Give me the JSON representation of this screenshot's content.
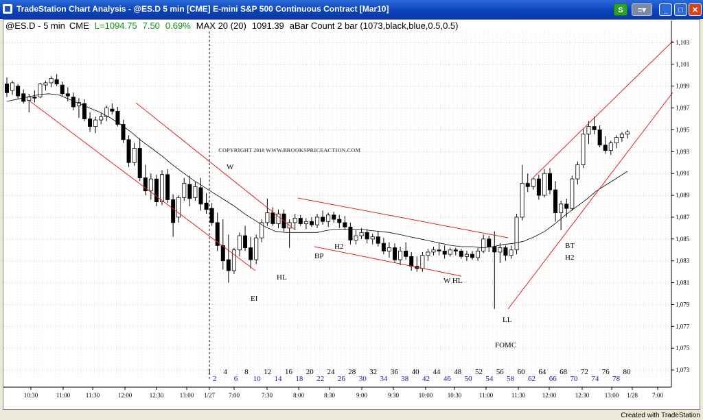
{
  "window": {
    "title": "TradeStation Chart Analysis - @ES.D 5 min [CME] E-mini S&P 500 Continuous Contract [Mar10]"
  },
  "status_bar": {
    "symbol": "@ES.D - 5 min",
    "exchange": "CME",
    "last": "L=1094.75",
    "change": "7.50",
    "change_pct": "0.69%",
    "max": "MAX 20 (20)",
    "max_value": "1091.39",
    "study": "aBar Count 2 bar (1073,black,blue,0.5,0.5)"
  },
  "footer": {
    "credit": "Created with TradeStation"
  },
  "chart_data": {
    "type": "candlestick",
    "copyright": "COPYRIGHT 2010  WWW.BROOKSPRICEACTION.COM",
    "y_axis": {
      "min": 1072,
      "max": 1104,
      "ticks": [
        "1,103",
        "1,101",
        "1,099",
        "1,097",
        "1,095",
        "1,093",
        "1,091",
        "1,089",
        "1,087",
        "1,085",
        "1,083",
        "1,081",
        "1,079",
        "1,077",
        "1,075",
        "1,073"
      ]
    },
    "x_labels": [
      "10:30",
      "11:00",
      "11:30",
      "12:00",
      "12:30",
      "13:00",
      "1/27",
      "7:00",
      "7:30",
      "8:00",
      "8:30",
      "9:00",
      "9:30",
      "10:00",
      "10:30",
      "11:00",
      "11:30",
      "12:00",
      "12:30",
      "13:00",
      "1/28",
      "7:00"
    ],
    "bar_count_odd": [
      "1",
      "4",
      "8",
      "12",
      "16",
      "20",
      "24",
      "28",
      "32",
      "36",
      "40",
      "44",
      "48",
      "52",
      "56",
      "60",
      "64",
      "68",
      "72",
      "76",
      "80"
    ],
    "bar_count_even": [
      "2",
      "6",
      "10",
      "14",
      "18",
      "22",
      "26",
      "30",
      "34",
      "38",
      "42",
      "46",
      "50",
      "54",
      "58",
      "62",
      "66",
      "70",
      "74",
      "78"
    ],
    "annotations": [
      "W",
      "EI",
      "HL",
      "BP",
      "H2",
      "W HL",
      "LL",
      "FOMC",
      "BT",
      "H2"
    ],
    "bars": [
      [
        1099.2,
        1099.8,
        1098.0,
        1098.4
      ],
      [
        1098.6,
        1099.5,
        1098.2,
        1099.3
      ],
      [
        1099.0,
        1099.2,
        1097.8,
        1098.1
      ],
      [
        1098.3,
        1098.7,
        1097.4,
        1097.6
      ],
      [
        1097.7,
        1098.3,
        1096.6,
        1098.0
      ],
      [
        1098.0,
        1098.6,
        1097.5,
        1097.9
      ],
      [
        1098.0,
        1099.3,
        1097.9,
        1099.2
      ],
      [
        1099.1,
        1099.5,
        1098.6,
        1099.3
      ],
      [
        1099.3,
        1099.9,
        1098.9,
        1099.7
      ],
      [
        1099.6,
        1100.1,
        1099.0,
        1099.2
      ],
      [
        1099.1,
        1099.4,
        1098.1,
        1098.3
      ],
      [
        1098.3,
        1098.9,
        1097.6,
        1098.1
      ],
      [
        1098.0,
        1098.4,
        1096.8,
        1097.1
      ],
      [
        1097.2,
        1097.9,
        1096.1,
        1097.5
      ],
      [
        1097.4,
        1097.8,
        1095.8,
        1096.0
      ],
      [
        1096.0,
        1096.6,
        1094.8,
        1095.3
      ],
      [
        1095.3,
        1096.2,
        1094.7,
        1095.9
      ],
      [
        1095.9,
        1096.5,
        1095.5,
        1096.2
      ],
      [
        1096.2,
        1097.2,
        1095.8,
        1097.0
      ],
      [
        1096.9,
        1097.4,
        1096.4,
        1096.7
      ],
      [
        1096.7,
        1097.1,
        1095.3,
        1095.5
      ],
      [
        1095.5,
        1095.9,
        1093.8,
        1094.1
      ],
      [
        1094.1,
        1094.5,
        1091.6,
        1092.0
      ],
      [
        1092.0,
        1093.8,
        1091.7,
        1093.3
      ],
      [
        1093.3,
        1094.2,
        1090.3,
        1090.6
      ],
      [
        1090.6,
        1091.8,
        1089.0,
        1089.4
      ],
      [
        1089.4,
        1091.0,
        1088.6,
        1090.5
      ],
      [
        1090.5,
        1090.9,
        1088.0,
        1088.4
      ],
      [
        1088.4,
        1091.3,
        1088.1,
        1090.9
      ],
      [
        1090.9,
        1091.4,
        1088.3,
        1088.6
      ],
      [
        1088.6,
        1089.1,
        1085.2,
        1086.5
      ],
      [
        1087.0,
        1089.0,
        1086.5,
        1088.8
      ],
      [
        1088.8,
        1090.6,
        1088.5,
        1090.1
      ],
      [
        1090.0,
        1090.8,
        1088.0,
        1088.7
      ],
      [
        1088.8,
        1090.2,
        1088.5,
        1089.8
      ],
      [
        1089.7,
        1090.6,
        1087.6,
        1088.2
      ],
      [
        1088.3,
        1089.2,
        1087.3,
        1087.7
      ],
      [
        1087.8,
        1088.3,
        1086.2,
        1086.5
      ],
      [
        1086.5,
        1087.4,
        1083.9,
        1084.4
      ],
      [
        1084.4,
        1086.8,
        1082.2,
        1083.0
      ],
      [
        1083.1,
        1085.4,
        1081.0,
        1082.1
      ],
      [
        1082.1,
        1084.2,
        1081.8,
        1084.0
      ],
      [
        1084.0,
        1085.6,
        1083.4,
        1085.3
      ],
      [
        1085.3,
        1086.2,
        1083.9,
        1084.2
      ],
      [
        1084.2,
        1085.2,
        1082.3,
        1083.1
      ],
      [
        1083.1,
        1085.4,
        1082.7,
        1085.1
      ],
      [
        1085.1,
        1086.8,
        1084.7,
        1086.5
      ],
      [
        1086.5,
        1088.7,
        1086.2,
        1087.4
      ],
      [
        1087.4,
        1087.9,
        1086.2,
        1086.4
      ],
      [
        1086.4,
        1087.7,
        1086.0,
        1087.3
      ],
      [
        1087.3,
        1087.7,
        1085.7,
        1086.0
      ],
      [
        1086.0,
        1086.8,
        1084.2,
        1086.5
      ],
      [
        1086.5,
        1087.3,
        1085.8,
        1086.9
      ],
      [
        1086.9,
        1087.2,
        1086.2,
        1086.4
      ],
      [
        1086.4,
        1086.9,
        1085.9,
        1086.6
      ],
      [
        1086.6,
        1087.0,
        1086.1,
        1086.3
      ],
      [
        1086.3,
        1087.3,
        1086.0,
        1087.0
      ],
      [
        1087.0,
        1087.6,
        1086.3,
        1086.6
      ],
      [
        1086.6,
        1087.4,
        1086.1,
        1087.2
      ],
      [
        1087.2,
        1087.5,
        1086.5,
        1086.8
      ],
      [
        1086.8,
        1087.2,
        1086.0,
        1086.5
      ],
      [
        1086.5,
        1087.1,
        1085.8,
        1086.1
      ],
      [
        1086.1,
        1086.5,
        1084.5,
        1084.9
      ],
      [
        1084.9,
        1085.8,
        1084.5,
        1085.3
      ],
      [
        1085.3,
        1086.0,
        1085.0,
        1085.6
      ],
      [
        1085.6,
        1085.9,
        1084.6,
        1085.0
      ],
      [
        1085.0,
        1085.5,
        1084.5,
        1085.2
      ],
      [
        1085.2,
        1085.7,
        1084.3,
        1084.6
      ],
      [
        1084.6,
        1085.1,
        1083.6,
        1083.9
      ],
      [
        1083.9,
        1084.7,
        1083.3,
        1084.2
      ],
      [
        1084.2,
        1084.6,
        1082.8,
        1083.1
      ],
      [
        1083.1,
        1084.3,
        1082.6,
        1083.9
      ],
      [
        1083.9,
        1084.7,
        1083.1,
        1083.4
      ],
      [
        1083.4,
        1083.8,
        1082.1,
        1082.5
      ],
      [
        1082.5,
        1083.4,
        1082.0,
        1082.3
      ],
      [
        1082.3,
        1083.8,
        1082.0,
        1083.5
      ],
      [
        1083.5,
        1084.1,
        1083.0,
        1083.8
      ],
      [
        1083.8,
        1084.3,
        1083.5,
        1084.0
      ],
      [
        1084.0,
        1084.6,
        1083.5,
        1083.9
      ],
      [
        1083.9,
        1084.4,
        1083.2,
        1083.6
      ],
      [
        1083.6,
        1084.2,
        1083.4,
        1084.0
      ],
      [
        1084.0,
        1084.2,
        1083.5,
        1083.9
      ],
      [
        1083.9,
        1084.1,
        1083.2,
        1083.4
      ],
      [
        1083.4,
        1083.9,
        1083.0,
        1083.6
      ],
      [
        1083.6,
        1083.9,
        1083.1,
        1083.3
      ],
      [
        1083.3,
        1084.2,
        1083.0,
        1083.9
      ],
      [
        1083.9,
        1085.4,
        1083.7,
        1085.0
      ],
      [
        1085.0,
        1085.3,
        1083.8,
        1084.3
      ],
      [
        1084.3,
        1085.7,
        1078.6,
        1083.8
      ],
      [
        1083.8,
        1084.6,
        1082.8,
        1084.2
      ],
      [
        1084.2,
        1084.4,
        1083.0,
        1083.5
      ],
      [
        1083.5,
        1084.4,
        1083.2,
        1084.0
      ],
      [
        1084.0,
        1087.3,
        1083.6,
        1087.0
      ],
      [
        1087.0,
        1091.8,
        1086.7,
        1090.1
      ],
      [
        1090.1,
        1091.0,
        1089.3,
        1089.8
      ],
      [
        1089.8,
        1090.7,
        1089.5,
        1090.5
      ],
      [
        1090.5,
        1090.9,
        1088.6,
        1089.0
      ],
      [
        1089.0,
        1091.4,
        1088.8,
        1091.0
      ],
      [
        1091.0,
        1091.5,
        1089.1,
        1089.5
      ],
      [
        1089.5,
        1090.3,
        1086.6,
        1087.4
      ],
      [
        1087.4,
        1088.5,
        1085.8,
        1088.2
      ],
      [
        1088.2,
        1088.7,
        1087.0,
        1087.8
      ],
      [
        1087.8,
        1090.8,
        1087.6,
        1090.5
      ],
      [
        1090.5,
        1092.1,
        1090.0,
        1091.8
      ],
      [
        1091.8,
        1095.1,
        1091.5,
        1094.6
      ],
      [
        1094.6,
        1095.8,
        1093.7,
        1095.3
      ],
      [
        1095.3,
        1096.2,
        1094.6,
        1095.0
      ],
      [
        1095.0,
        1095.4,
        1093.4,
        1093.6
      ],
      [
        1093.6,
        1094.4,
        1092.8,
        1093.1
      ],
      [
        1093.1,
        1094.0,
        1092.7,
        1093.8
      ],
      [
        1093.8,
        1094.5,
        1093.3,
        1094.3
      ],
      [
        1094.3,
        1094.8,
        1093.9,
        1094.6
      ],
      [
        1094.6,
        1095.0,
        1094.2,
        1094.8
      ]
    ],
    "moving_average": [
      1097.6,
      1097.8,
      1098.0,
      1098.2,
      1098.3,
      1098.2,
      1097.8,
      1097.4,
      1097.0,
      1096.6,
      1096.1,
      1095.5,
      1094.8,
      1094.0,
      1093.3,
      1092.6,
      1091.8,
      1091.1,
      1090.4,
      1089.8,
      1089.2,
      1088.6,
      1088.0,
      1087.3,
      1086.7,
      1086.1,
      1085.7,
      1085.6,
      1085.6,
      1085.6,
      1085.6,
      1085.8,
      1085.9,
      1085.9,
      1085.9,
      1085.8,
      1085.7,
      1085.6,
      1085.4,
      1085.2,
      1085.0,
      1084.8,
      1084.6,
      1084.4,
      1084.3,
      1084.3,
      1084.2,
      1084.3,
      1084.5,
      1084.6,
      1084.8,
      1085.2,
      1085.7,
      1086.4,
      1087.2,
      1087.9,
      1088.6,
      1089.4,
      1090.0,
      1090.6,
      1091.2
    ]
  }
}
